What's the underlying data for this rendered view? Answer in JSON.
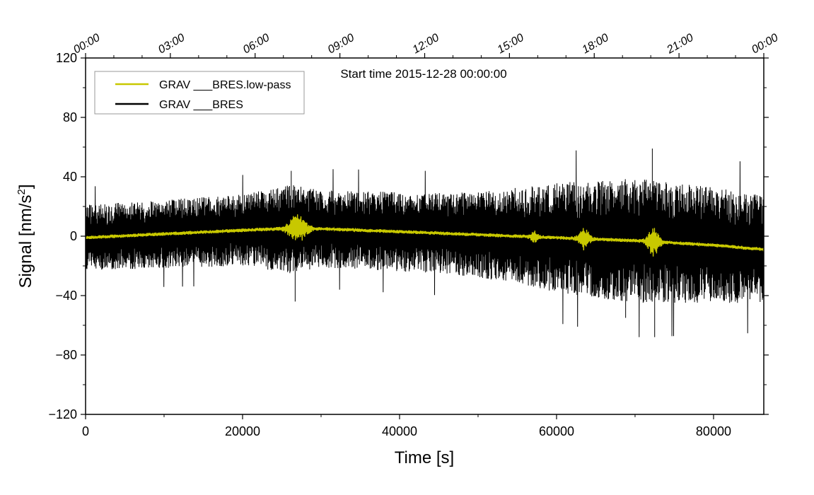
{
  "chart_data": {
    "type": "line",
    "title": "",
    "annotation": "Start time 2015-12-28 00:00:00",
    "xlabel": "Time [s]",
    "ylabel": "Signal [nm/s²]",
    "ylabel_base": "Signal [nm/s",
    "ylabel_sup": "2",
    "ylabel_end": "]",
    "xlim": [
      0,
      86400
    ],
    "ylim": [
      -120,
      120
    ],
    "x_ticks": [
      0,
      20000,
      40000,
      60000,
      80000
    ],
    "x_tick_labels": [
      "0",
      "20000",
      "40000",
      "60000",
      "80000"
    ],
    "y_ticks": [
      -120,
      -80,
      -40,
      0,
      40,
      80,
      120
    ],
    "y_tick_labels": [
      "−120",
      "−80",
      "−40",
      "0",
      "40",
      "80",
      "120"
    ],
    "top_axis": {
      "ticks": [
        0,
        10800,
        21600,
        32400,
        43200,
        54000,
        64800,
        75600,
        86400
      ],
      "labels": [
        "00:00",
        "03:00",
        "06:00",
        "09:00",
        "12:00",
        "15:00",
        "18:00",
        "21:00",
        "00:00"
      ]
    },
    "legend": {
      "position": "top-left"
    },
    "series": [
      {
        "name": "GRAV ___BRES.low-pass",
        "color": "#c8c800",
        "trend_x": [
          0,
          10000,
          20000,
          25000,
          30000,
          40000,
          50000,
          60000,
          70000,
          80000,
          86400
        ],
        "trend_y": [
          -1,
          1.5,
          4,
          5,
          5,
          3,
          1,
          -1,
          -3,
          -6,
          -9
        ],
        "noise_amplitude": 1.2,
        "bursts": [
          {
            "center": 27000,
            "width": 1200,
            "amplitude": 9
          },
          {
            "center": 57200,
            "width": 500,
            "amplitude": 3
          },
          {
            "center": 63500,
            "width": 700,
            "amplitude": 7
          },
          {
            "center": 72300,
            "width": 800,
            "amplitude": 9
          }
        ]
      },
      {
        "name": "GRAV ___BRES",
        "color": "#000000",
        "trend_x": [
          0,
          10000,
          20000,
          25000,
          30000,
          40000,
          50000,
          60000,
          70000,
          80000,
          86400
        ],
        "trend_y": [
          -1,
          1.5,
          4,
          5,
          5,
          3,
          1,
          -1,
          -3,
          -6,
          -9
        ],
        "envelope_x": [
          0,
          20000,
          26000,
          30000,
          45000,
          52000,
          60000,
          70000,
          80000,
          86400
        ],
        "envelope_half_range": [
          22,
          24,
          30,
          26,
          27,
          30,
          37,
          42,
          39,
          36
        ],
        "spike_max": 59,
        "spike_min": -68
      }
    ]
  }
}
